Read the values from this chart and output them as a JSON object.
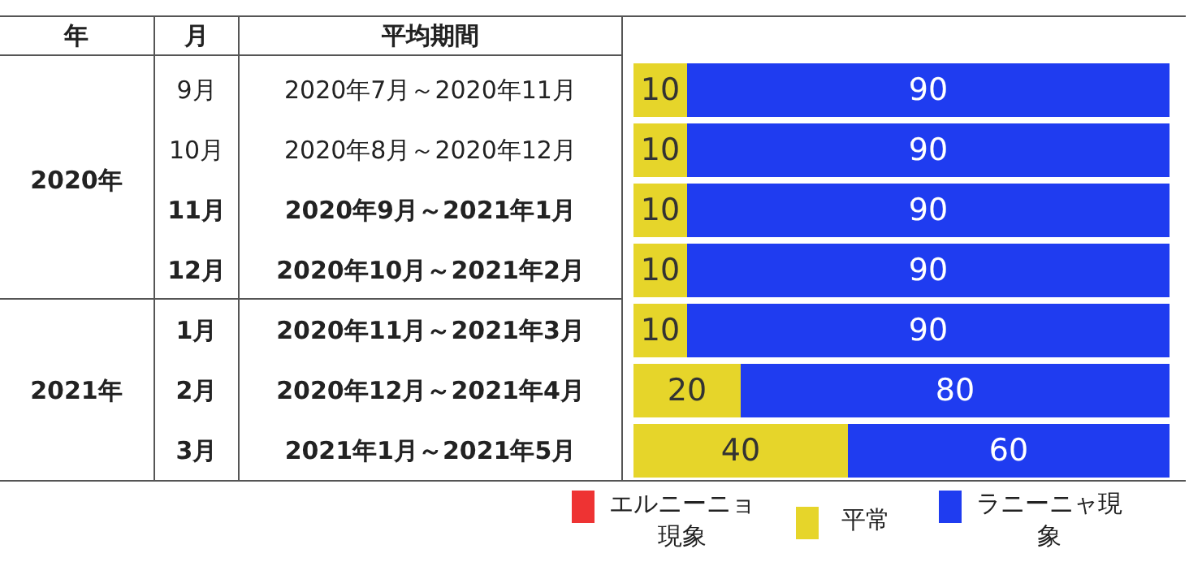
{
  "chart_data": {
    "type": "bar",
    "orientation": "horizontal",
    "stacked": true,
    "legend": "bottom",
    "categories": [
      "2020年7月～2020年11月",
      "2020年8月～2020年12月",
      "2020年9月～2021年1月",
      "2020年10月～2021年2月",
      "2020年11月～2021年3月",
      "2020年12月～2021年4月",
      "2021年1月～2021年5月"
    ],
    "series": [
      {
        "name": "エルニーニョ現象",
        "color": "#ee3333",
        "values": [
          0,
          0,
          0,
          0,
          0,
          0,
          0
        ],
        "value_labels": [
          null,
          null,
          null,
          null,
          null,
          null,
          null
        ]
      },
      {
        "name": "平常",
        "color": "#e6d52a",
        "values": [
          10,
          10,
          10,
          10,
          10,
          20,
          40
        ],
        "value_labels": [
          "10",
          "10",
          "10",
          "10",
          "10",
          "20",
          "40"
        ]
      },
      {
        "name": "ラニーニャ現象",
        "color": "#1f3cf0",
        "values": [
          90,
          90,
          90,
          90,
          90,
          80,
          60
        ],
        "value_labels": [
          "90",
          "90",
          "90",
          "90",
          "90",
          "80",
          "60"
        ]
      }
    ],
    "annotations": [
      "年",
      "月",
      "平均期間",
      "2020年",
      "2021年",
      "9月",
      "10月",
      "11月",
      "12月",
      "1月",
      "2月",
      "3月"
    ]
  }
}
